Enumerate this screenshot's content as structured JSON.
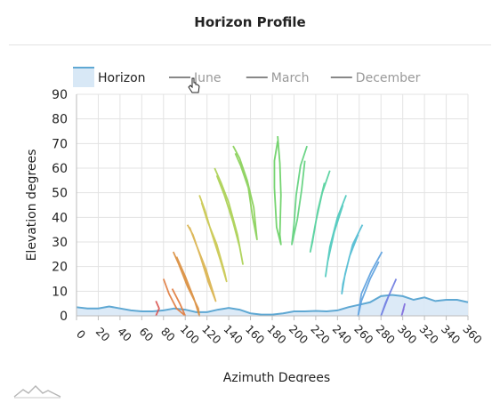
{
  "title": "Horizon Profile",
  "chart_data": {
    "type": "line",
    "title": "Horizon Profile",
    "xlabel": "Azimuth Degrees",
    "ylabel": "Elevation degrees",
    "xlim": [
      0,
      360
    ],
    "ylim": [
      0,
      90
    ],
    "xticks": [
      "0",
      "20",
      "40",
      "60",
      "80",
      "100",
      "120",
      "140",
      "160",
      "180",
      "200",
      "220",
      "240",
      "260",
      "280",
      "300",
      "320",
      "340",
      "360"
    ],
    "yticks": [
      "0",
      "10",
      "20",
      "30",
      "40",
      "50",
      "60",
      "70",
      "80",
      "90"
    ],
    "grid": true,
    "legend_position": "top",
    "legend": [
      {
        "label": "Horizon",
        "color": "#5fa8d3",
        "active": true
      },
      {
        "label": "June",
        "color": "#888888",
        "active": false
      },
      {
        "label": "March",
        "color": "#888888",
        "active": false
      },
      {
        "label": "December",
        "color": "#888888",
        "active": false
      }
    ],
    "horizon": {
      "name": "Horizon",
      "x": [
        0,
        10,
        20,
        30,
        40,
        50,
        60,
        70,
        80,
        90,
        100,
        110,
        120,
        130,
        140,
        150,
        160,
        170,
        180,
        190,
        200,
        210,
        220,
        230,
        240,
        250,
        260,
        270,
        280,
        290,
        300,
        310,
        320,
        330,
        340,
        350,
        360
      ],
      "y": [
        3.5,
        3,
        3,
        3.8,
        3,
        2.2,
        1.8,
        1.8,
        2.2,
        3,
        2.5,
        1.5,
        1.5,
        2.5,
        3.2,
        2.5,
        1,
        0.5,
        0.5,
        1,
        1.8,
        1.8,
        2,
        1.8,
        2.2,
        3.5,
        4.5,
        5.5,
        8,
        8.5,
        8,
        6.5,
        7.5,
        6,
        6.5,
        6.5,
        5.5
      ]
    },
    "sun_paths": [
      {
        "color": "#d9534f",
        "points": [
          [
            73,
            0
          ],
          [
            76,
            3
          ],
          [
            73,
            6
          ]
        ]
      },
      {
        "color": "#e07a3c",
        "points": [
          [
            80,
            15
          ],
          [
            85,
            9
          ],
          [
            92,
            3
          ],
          [
            100,
            0
          ],
          [
            95,
            5
          ],
          [
            88,
            11
          ]
        ]
      },
      {
        "color": "#d98c3a",
        "points": [
          [
            89,
            26
          ],
          [
            94,
            21
          ],
          [
            102,
            12
          ],
          [
            112,
            3
          ],
          [
            113,
            0
          ],
          [
            108,
            7
          ],
          [
            100,
            16
          ],
          [
            92,
            24
          ]
        ]
      },
      {
        "color": "#d9b14a",
        "points": [
          [
            102,
            37
          ],
          [
            107,
            33
          ],
          [
            114,
            24
          ],
          [
            121,
            14
          ],
          [
            128,
            6
          ],
          [
            126,
            9
          ],
          [
            119,
            19
          ],
          [
            110,
            29
          ],
          [
            104,
            36
          ]
        ]
      },
      {
        "color": "#c9c64b",
        "points": [
          [
            113,
            49
          ],
          [
            118,
            43
          ],
          [
            124,
            34
          ],
          [
            132,
            23
          ],
          [
            138,
            14
          ],
          [
            136,
            18
          ],
          [
            129,
            29
          ],
          [
            120,
            39
          ],
          [
            115,
            46
          ]
        ]
      },
      {
        "color": "#a9cf4f",
        "points": [
          [
            127,
            60
          ],
          [
            133,
            54
          ],
          [
            140,
            46
          ],
          [
            148,
            33
          ],
          [
            153,
            21
          ],
          [
            150,
            28
          ],
          [
            144,
            38
          ],
          [
            136,
            49
          ],
          [
            129,
            57
          ]
        ]
      },
      {
        "color": "#86cf54",
        "points": [
          [
            144,
            69
          ],
          [
            150,
            64
          ],
          [
            157,
            55
          ],
          [
            163,
            44
          ],
          [
            166,
            31
          ],
          [
            162,
            40
          ],
          [
            158,
            52
          ],
          [
            151,
            61
          ],
          [
            146,
            66
          ]
        ]
      },
      {
        "color": "#66cf60",
        "points": [
          [
            185,
            73
          ],
          [
            187,
            62
          ],
          [
            188,
            49
          ],
          [
            187,
            33
          ],
          [
            188,
            29
          ],
          [
            184,
            36
          ],
          [
            182,
            52
          ],
          [
            182,
            63
          ],
          [
            185,
            71
          ]
        ]
      },
      {
        "color": "#5dd07a",
        "points": [
          [
            212,
            69
          ],
          [
            206,
            61
          ],
          [
            202,
            49
          ],
          [
            200,
            37
          ],
          [
            198,
            29
          ],
          [
            203,
            39
          ],
          [
            207,
            51
          ],
          [
            210,
            63
          ]
        ]
      },
      {
        "color": "#4fcf9a",
        "points": [
          [
            233,
            59
          ],
          [
            226,
            50
          ],
          [
            220,
            38
          ],
          [
            215,
            26
          ],
          [
            217,
            30
          ],
          [
            222,
            43
          ],
          [
            228,
            54
          ]
        ]
      },
      {
        "color": "#49c8bb",
        "points": [
          [
            248,
            49
          ],
          [
            240,
            40
          ],
          [
            233,
            28
          ],
          [
            229,
            16
          ],
          [
            231,
            22
          ],
          [
            237,
            34
          ],
          [
            245,
            45
          ]
        ]
      },
      {
        "color": "#4cbad1",
        "points": [
          [
            263,
            37
          ],
          [
            254,
            29
          ],
          [
            247,
            17
          ],
          [
            244,
            9
          ],
          [
            245,
            13
          ],
          [
            251,
            24
          ],
          [
            259,
            33
          ]
        ]
      },
      {
        "color": "#5a9ede",
        "points": [
          [
            281,
            26
          ],
          [
            271,
            18
          ],
          [
            262,
            9
          ],
          [
            259,
            0
          ],
          [
            262,
            6
          ],
          [
            270,
            15
          ],
          [
            278,
            22
          ]
        ]
      },
      {
        "color": "#6c7ae0",
        "points": [
          [
            294,
            15
          ],
          [
            287,
            8
          ],
          [
            280,
            0
          ],
          [
            284,
            5
          ],
          [
            291,
            12
          ]
        ]
      },
      {
        "color": "#7d68dc",
        "points": [
          [
            302,
            5
          ],
          [
            299,
            0
          ],
          [
            301,
            3
          ]
        ]
      }
    ]
  },
  "footer": {
    "logo": "mountain-logo-icon"
  }
}
